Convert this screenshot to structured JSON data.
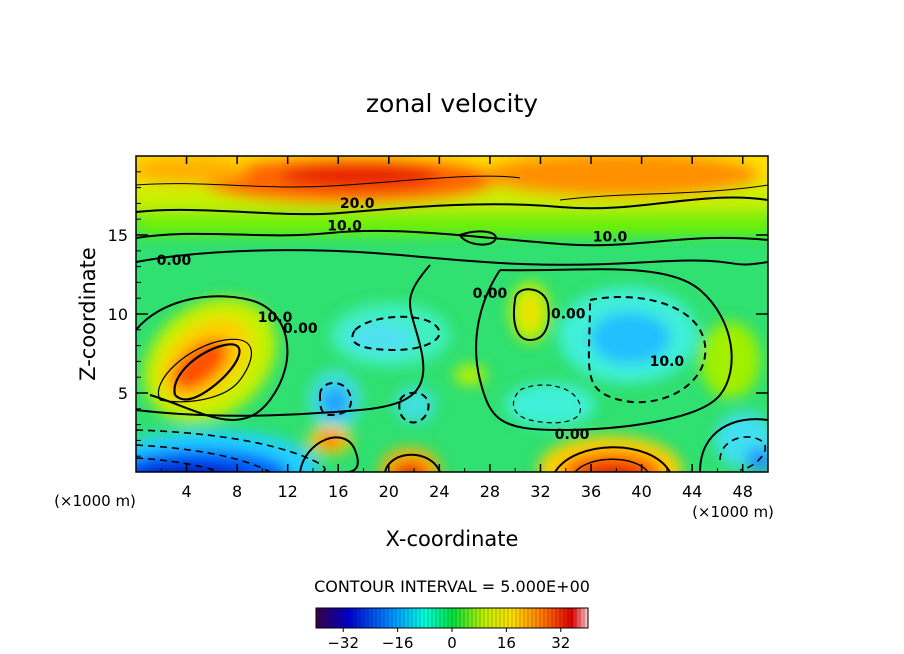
{
  "chart_data": {
    "type": "heatmap",
    "title": "zonal velocity",
    "xlabel": "X-coordinate",
    "ylabel": "Z-coordinate",
    "x_unit_left": "(×1000 m)",
    "x_unit_right": "(×1000 m)",
    "xlim": [
      0,
      50
    ],
    "ylim": [
      0,
      20
    ],
    "xticks": [
      4,
      8,
      12,
      16,
      20,
      24,
      28,
      32,
      36,
      40,
      44,
      48
    ],
    "yticks": [
      5,
      10,
      15
    ],
    "contour_interval_text": "CONTOUR INTERVAL = 5.000E+00",
    "contour_labels": [
      {
        "text": "20.0",
        "x": 17.5,
        "z": 16.7
      },
      {
        "text": "10.0",
        "x": 16.5,
        "z": 15.3
      },
      {
        "text": "10.0",
        "x": 37.5,
        "z": 14.6
      },
      {
        "text": "0.00",
        "x": 3.0,
        "z": 13.1
      },
      {
        "text": "10.0",
        "x": 11.0,
        "z": 9.5
      },
      {
        "text": "0.00",
        "x": 13.0,
        "z": 8.8
      },
      {
        "text": "0.00",
        "x": 28.0,
        "z": 11.0
      },
      {
        "text": "0.00",
        "x": 34.2,
        "z": 9.7
      },
      {
        "text": "10.0",
        "x": 42.0,
        "z": 6.7
      },
      {
        "text": "0.00",
        "x": 34.5,
        "z": 2.1
      }
    ],
    "colorbar": {
      "range": [
        -40,
        40
      ],
      "ticks": [
        -32,
        -16,
        0,
        16,
        32
      ],
      "tick_labels": [
        "−32",
        "−16",
        "0",
        "16",
        "32"
      ]
    },
    "features": [
      {
        "x": 18,
        "z": 18.5,
        "value": 32
      },
      {
        "x": 6,
        "z": 6.5,
        "value": 25
      },
      {
        "x": 3,
        "z": 0.3,
        "value": -40
      },
      {
        "x": 22,
        "z": 0.5,
        "value": 30
      },
      {
        "x": 38.5,
        "z": 0.5,
        "value": 30
      },
      {
        "x": 39,
        "z": 8.5,
        "value": -8
      },
      {
        "x": 15.5,
        "z": 4.5,
        "value": -8
      },
      {
        "x": 30.5,
        "z": 10.0,
        "value": 12
      }
    ]
  }
}
